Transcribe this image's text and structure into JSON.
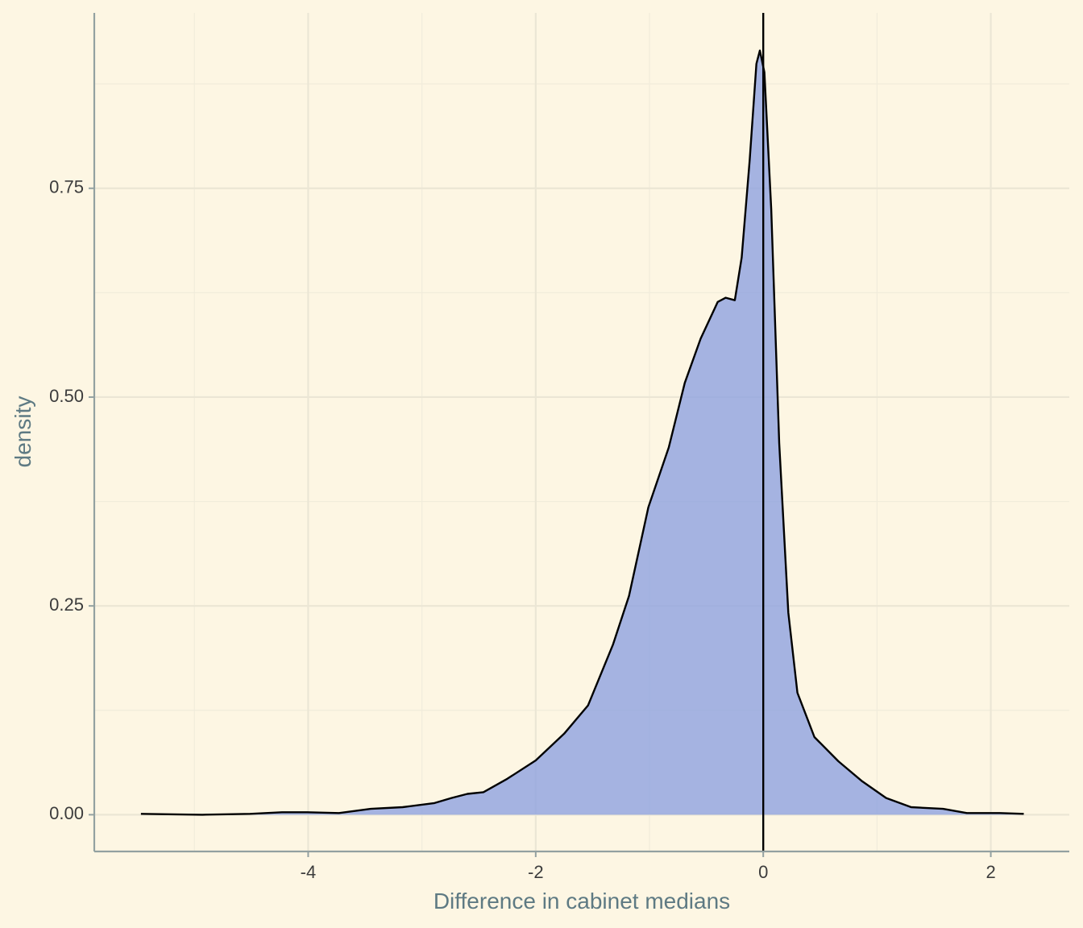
{
  "chart_data": {
    "type": "density",
    "x_label": "Difference in cabinet medians",
    "y_label": "density",
    "x": [
      -5.47,
      -4.93,
      -4.51,
      -4.23,
      -4.01,
      -3.73,
      -3.45,
      -3.17,
      -2.89,
      -2.74,
      -2.6,
      -2.46,
      -2.25,
      -2.0,
      -1.75,
      -1.54,
      -1.32,
      -1.18,
      -1.01,
      -0.83,
      -0.69,
      -0.55,
      -0.4,
      -0.33,
      -0.25,
      -0.19,
      -0.12,
      -0.06,
      -0.03,
      0.01,
      0.07,
      0.14,
      0.22,
      0.3,
      0.45,
      0.66,
      0.87,
      1.08,
      1.3,
      1.58,
      1.79,
      2.08,
      2.29
    ],
    "y": [
      0.001,
      0.0,
      0.001,
      0.003,
      0.003,
      0.002,
      0.007,
      0.009,
      0.014,
      0.02,
      0.025,
      0.027,
      0.043,
      0.065,
      0.097,
      0.131,
      0.204,
      0.262,
      0.368,
      0.44,
      0.517,
      0.57,
      0.614,
      0.619,
      0.616,
      0.667,
      0.783,
      0.899,
      0.915,
      0.889,
      0.725,
      0.445,
      0.242,
      0.146,
      0.093,
      0.064,
      0.04,
      0.02,
      0.009,
      0.007,
      0.002,
      0.002,
      0.001
    ],
    "fill": "#8fa3e0",
    "line_color": "#000000",
    "vline": 0,
    "xlim": [
      -5.88,
      2.69
    ],
    "ylim": [
      -0.044,
      0.96
    ],
    "xticks": [
      -4,
      -2,
      0,
      2
    ],
    "yticks": [
      {
        "value": 0,
        "label": "0.00"
      },
      {
        "value": 0.25,
        "label": "0.25"
      },
      {
        "value": 0.5,
        "label": "0.50"
      },
      {
        "value": 0.75,
        "label": "0.75"
      }
    ],
    "grid": true
  }
}
